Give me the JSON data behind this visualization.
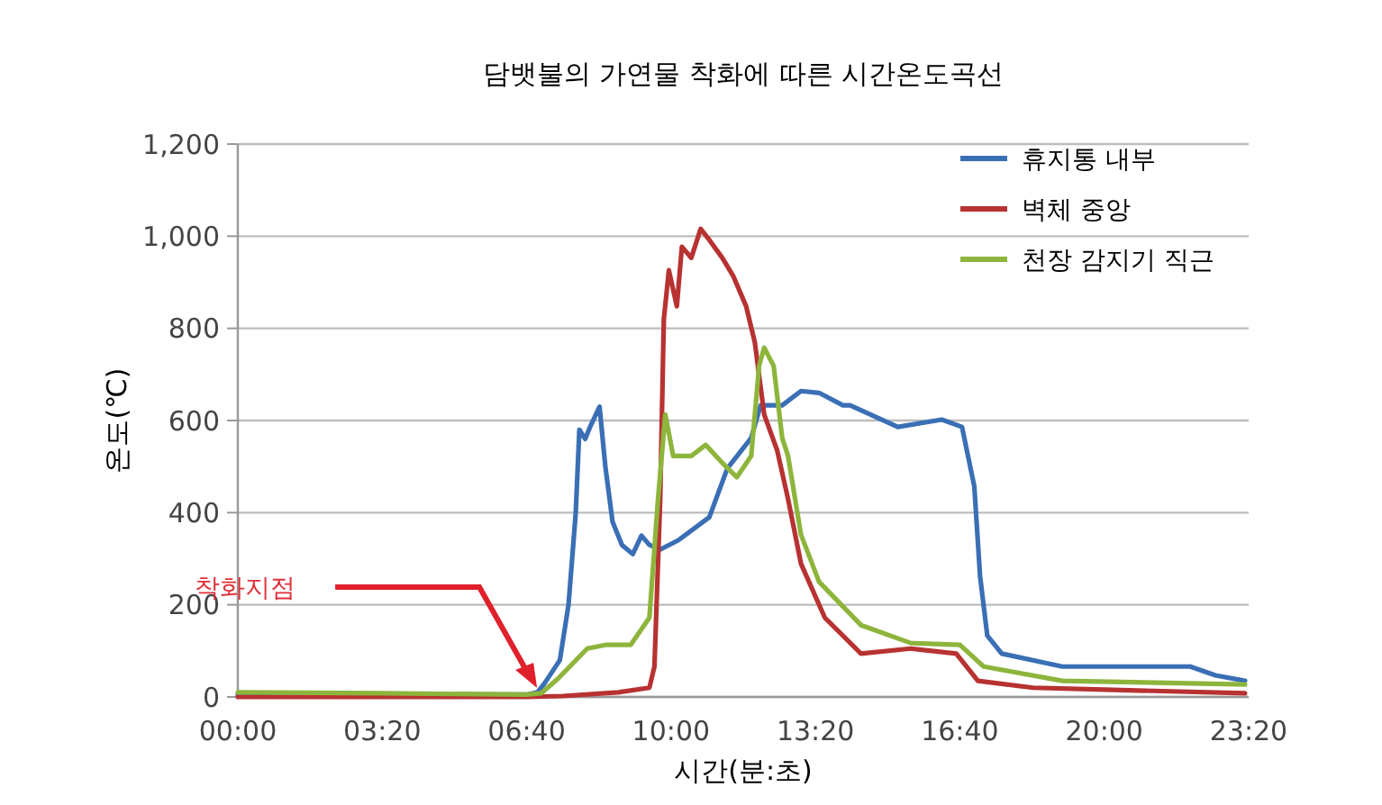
{
  "chart_data": {
    "type": "line",
    "title": "담뱃불의 가연물 착화에 따른 시간온도곡선",
    "xlabel": "시간(분:초)",
    "ylabel": "온도(℃)",
    "xlim": [
      0,
      1400
    ],
    "xticks": [
      {
        "value": 0,
        "label": "00:00"
      },
      {
        "value": 200,
        "label": "03:20"
      },
      {
        "value": 400,
        "label": "06:40"
      },
      {
        "value": 600,
        "label": "10:00"
      },
      {
        "value": 800,
        "label": "13:20"
      },
      {
        "value": 1000,
        "label": "16:40"
      },
      {
        "value": 1200,
        "label": "20:00"
      },
      {
        "value": 1400,
        "label": "23:20"
      }
    ],
    "ylim": [
      0,
      1200
    ],
    "yticks": [
      {
        "value": 0,
        "label": "0"
      },
      {
        "value": 200,
        "label": "200"
      },
      {
        "value": 400,
        "label": "400"
      },
      {
        "value": 600,
        "label": "600"
      },
      {
        "value": 800,
        "label": "800"
      },
      {
        "value": 1000,
        "label": "1,000"
      },
      {
        "value": 1200,
        "label": "1,200"
      }
    ],
    "grid": "y",
    "legend": "top right",
    "line_style": "solid",
    "marker": "none",
    "annotations": [
      "착화지점"
    ],
    "series": [
      {
        "name": "휴지통 내부",
        "color": "#3a6fb5",
        "x": [
          0,
          200,
          400,
          415,
          425,
          446,
          458,
          468,
          473,
          481,
          489,
          501,
          509,
          519,
          532,
          547,
          559,
          570,
          585,
          610,
          653,
          678,
          711,
          724,
          754,
          780,
          805,
          838,
          848,
          914,
          975,
          1003,
          1020,
          1028,
          1038,
          1058,
          1142,
          1319,
          1354,
          1395
        ],
        "values": [
          5,
          5,
          5,
          10,
          30,
          80,
          200,
          400,
          580,
          560,
          590,
          630,
          500,
          380,
          330,
          310,
          350,
          330,
          320,
          340,
          390,
          496,
          562,
          633,
          633,
          664,
          660,
          633,
          633,
          586,
          602,
          586,
          457,
          262,
          133,
          94,
          66,
          66,
          47,
          35
        ]
      },
      {
        "name": "벽체 중앙",
        "color": "#b83232",
        "x": [
          0,
          200,
          400,
          450,
          527,
          570,
          577,
          585,
          590,
          597,
          608,
          615,
          628,
          641,
          653,
          671,
          686,
          704,
          716,
          729,
          747,
          762,
          780,
          813,
          863,
          932,
          995,
          1025,
          1101,
          1395
        ],
        "values": [
          0,
          0,
          0,
          2,
          10,
          20,
          66,
          430,
          820,
          926,
          848,
          977,
          953,
          1016,
          992,
          953,
          914,
          848,
          770,
          613,
          535,
          430,
          289,
          172,
          94,
          105,
          94,
          35,
          20,
          8
        ]
      },
      {
        "name": "천장 감지기 직근",
        "color": "#8db53c",
        "x": [
          0,
          200,
          400,
          420,
          443,
          484,
          509,
          544,
          570,
          582,
          592,
          603,
          628,
          648,
          671,
          691,
          711,
          722,
          729,
          742,
          754,
          762,
          780,
          805,
          863,
          932,
          1000,
          1033,
          1142,
          1395
        ],
        "values": [
          10,
          8,
          5,
          8,
          39,
          105,
          113,
          113,
          172,
          430,
          613,
          523,
          523,
          547,
          508,
          477,
          523,
          719,
          758,
          719,
          562,
          523,
          352,
          250,
          156,
          117,
          113,
          66,
          35,
          27
        ]
      }
    ]
  }
}
